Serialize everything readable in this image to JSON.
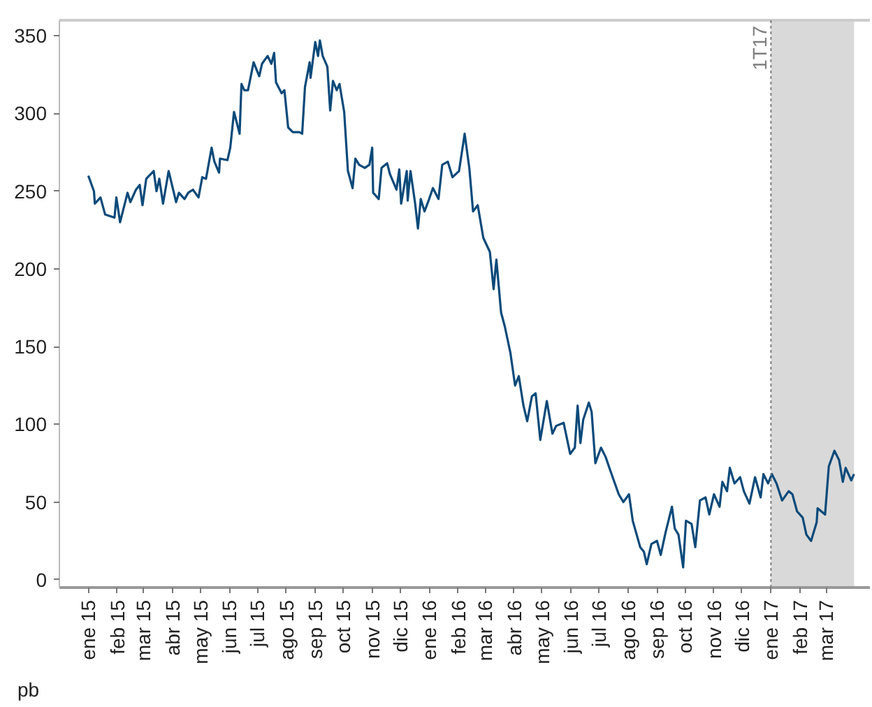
{
  "chart_data": {
    "type": "line",
    "ylabel": "pb",
    "x": [
      "2015-01-01",
      "2015-01-07",
      "2015-01-08",
      "2015-01-14",
      "2015-01-19",
      "2015-01-29",
      "2015-01-31",
      "2015-02-04",
      "2015-02-12",
      "2015-02-15",
      "2015-02-21",
      "2015-02-25",
      "2015-02-28",
      "2015-03-04",
      "2015-03-12",
      "2015-03-15",
      "2015-03-18",
      "2015-03-22",
      "2015-03-28",
      "2015-04-05",
      "2015-04-08",
      "2015-04-14",
      "2015-04-18",
      "2015-04-23",
      "2015-04-29",
      "2015-05-03",
      "2015-05-07",
      "2015-05-13",
      "2015-05-16",
      "2015-05-21",
      "2015-05-22",
      "2015-05-30",
      "2015-06-02",
      "2015-06-06",
      "2015-06-12",
      "2015-06-14",
      "2015-06-17",
      "2015-06-21",
      "2015-06-27",
      "2015-07-03",
      "2015-07-06",
      "2015-07-12",
      "2015-07-16",
      "2015-07-19",
      "2015-07-21",
      "2015-07-27",
      "2015-07-30",
      "2015-08-03",
      "2015-08-08",
      "2015-08-15",
      "2015-08-18",
      "2015-08-21",
      "2015-08-26",
      "2015-08-27",
      "2015-09-01",
      "2015-09-04",
      "2015-09-06",
      "2015-09-09",
      "2015-09-14",
      "2015-09-17",
      "2015-09-20",
      "2015-09-24",
      "2015-09-27",
      "2015-10-02",
      "2015-10-06",
      "2015-10-11",
      "2015-10-14",
      "2015-10-18",
      "2015-10-24",
      "2015-10-29",
      "2015-11-01",
      "2015-11-02",
      "2015-11-08",
      "2015-11-11",
      "2015-11-17",
      "2015-11-20",
      "2015-11-27",
      "2015-11-30",
      "2015-12-02",
      "2015-12-08",
      "2015-12-09",
      "2015-12-12",
      "2015-12-17",
      "2015-12-20",
      "2015-12-23",
      "2015-12-27",
      "2016-01-01",
      "2016-01-05",
      "2016-01-11",
      "2016-01-15",
      "2016-01-21",
      "2016-01-26",
      "2016-02-02",
      "2016-02-08",
      "2016-02-13",
      "2016-02-17",
      "2016-02-22",
      "2016-02-28",
      "2016-03-06",
      "2016-03-10",
      "2016-03-13",
      "2016-03-18",
      "2016-03-22",
      "2016-03-28",
      "2016-04-02",
      "2016-04-06",
      "2016-04-11",
      "2016-04-15",
      "2016-04-20",
      "2016-04-24",
      "2016-04-29",
      "2016-05-06",
      "2016-05-12",
      "2016-05-16",
      "2016-05-24",
      "2016-05-31",
      "2016-06-05",
      "2016-06-08",
      "2016-06-11",
      "2016-06-14",
      "2016-06-20",
      "2016-06-23",
      "2016-06-27",
      "2016-07-03",
      "2016-07-08",
      "2016-07-12",
      "2016-07-22",
      "2016-07-27",
      "2016-08-02",
      "2016-08-06",
      "2016-08-14",
      "2016-08-18",
      "2016-08-21",
      "2016-08-26",
      "2016-09-01",
      "2016-09-05",
      "2016-09-10",
      "2016-09-17",
      "2016-09-20",
      "2016-09-24",
      "2016-09-29",
      "2016-10-02",
      "2016-10-08",
      "2016-10-12",
      "2016-10-17",
      "2016-10-23",
      "2016-10-27",
      "2016-11-01",
      "2016-11-07",
      "2016-11-10",
      "2016-11-15",
      "2016-11-18",
      "2016-11-23",
      "2016-11-29",
      "2016-12-03",
      "2016-12-09",
      "2016-12-15",
      "2016-12-21",
      "2016-12-24",
      "2016-12-29",
      "2017-01-02",
      "2017-01-07",
      "2017-01-13",
      "2017-01-20",
      "2017-01-24",
      "2017-01-29",
      "2017-02-04",
      "2017-02-08",
      "2017-02-13",
      "2017-02-19",
      "2017-02-20",
      "2017-02-28",
      "2017-03-04",
      "2017-03-10",
      "2017-03-15",
      "2017-03-19",
      "2017-03-22",
      "2017-03-28",
      "2017-03-31"
    ],
    "series": [
      {
        "color": "#0b4a7a",
        "values": [
          260,
          250,
          242,
          246,
          235,
          233,
          246,
          230,
          249,
          243,
          251,
          254,
          241,
          258,
          263,
          250,
          258,
          242,
          263,
          243,
          249,
          245,
          249,
          251,
          246,
          259,
          258,
          278,
          269,
          262,
          271,
          270,
          278,
          301,
          287,
          319,
          315,
          315,
          333,
          324,
          332,
          337,
          332,
          339,
          320,
          313,
          315,
          291,
          288,
          288,
          287,
          317,
          333,
          323,
          346,
          337,
          347,
          337,
          330,
          302,
          321,
          315,
          319,
          301,
          263,
          252,
          271,
          267,
          265,
          267,
          278,
          249,
          245,
          265,
          268,
          261,
          251,
          264,
          242,
          263,
          244,
          263,
          242,
          226,
          245,
          237,
          245,
          252,
          245,
          267,
          269,
          259,
          263,
          287,
          265,
          237,
          241,
          220,
          211,
          187,
          206,
          172,
          163,
          146,
          125,
          131,
          112,
          102,
          118,
          120,
          90,
          115,
          94,
          99,
          101,
          81,
          85,
          112,
          88,
          103,
          114,
          108,
          75,
          85,
          79,
          72,
          55,
          50,
          55,
          38,
          21,
          18,
          10,
          23,
          25,
          16,
          30,
          47,
          33,
          29,
          8,
          38,
          36,
          21,
          51,
          53,
          42,
          55,
          47,
          63,
          57,
          72,
          62,
          66,
          57,
          49,
          66,
          53,
          68,
          62,
          68,
          62,
          51,
          57,
          55,
          44,
          40,
          29,
          25,
          37,
          46,
          42,
          73,
          83,
          77,
          63,
          72,
          64,
          68
        ]
      }
    ],
    "xlim": [
      "2014-12-01",
      "2017-04-17"
    ],
    "xticks": [
      {
        "value": "2015-01-01",
        "label": "ene 15"
      },
      {
        "value": "2015-02-01",
        "label": "feb 15"
      },
      {
        "value": "2015-03-01",
        "label": "mar 15"
      },
      {
        "value": "2015-04-01",
        "label": "abr 15"
      },
      {
        "value": "2015-05-01",
        "label": "may 15"
      },
      {
        "value": "2015-06-01",
        "label": "jun 15"
      },
      {
        "value": "2015-07-01",
        "label": "jul 15"
      },
      {
        "value": "2015-08-01",
        "label": "ago 15"
      },
      {
        "value": "2015-09-01",
        "label": "sep 15"
      },
      {
        "value": "2015-10-01",
        "label": "oct 15"
      },
      {
        "value": "2015-11-01",
        "label": "nov 15"
      },
      {
        "value": "2015-12-01",
        "label": "dic 15"
      },
      {
        "value": "2016-01-01",
        "label": "ene 16"
      },
      {
        "value": "2016-02-01",
        "label": "feb 16"
      },
      {
        "value": "2016-03-01",
        "label": "mar 16"
      },
      {
        "value": "2016-04-01",
        "label": "abr 16"
      },
      {
        "value": "2016-05-01",
        "label": "may 16"
      },
      {
        "value": "2016-06-01",
        "label": "jun 16"
      },
      {
        "value": "2016-07-01",
        "label": "jul 16"
      },
      {
        "value": "2016-08-01",
        "label": "ago 16"
      },
      {
        "value": "2016-09-01",
        "label": "sep 16"
      },
      {
        "value": "2016-10-01",
        "label": "oct 16"
      },
      {
        "value": "2016-11-01",
        "label": "nov 16"
      },
      {
        "value": "2016-12-01",
        "label": "dic 16"
      },
      {
        "value": "2017-01-01",
        "label": "ene 17"
      },
      {
        "value": "2017-02-01",
        "label": "feb 17"
      },
      {
        "value": "2017-03-01",
        "label": "mar 17"
      }
    ],
    "ylim": [
      -5,
      360
    ],
    "yticks": [
      0,
      50,
      100,
      150,
      200,
      250,
      300,
      350
    ],
    "grid": false,
    "ref_lines": [
      {
        "axis": "x",
        "value": "2017-01-01",
        "label": "1T17",
        "color": "#7f7f7f",
        "line_style": "dotted"
      }
    ],
    "bands": [
      {
        "axis": "x",
        "from": "2017-01-01",
        "to": "2017-03-31",
        "color": "#d9d9d9"
      }
    ]
  }
}
